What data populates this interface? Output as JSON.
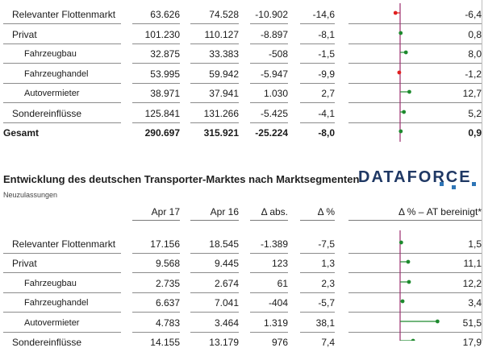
{
  "logo_text": "DATAFORCE",
  "colors": {
    "positive": "#1e8a2e",
    "negative": "#e02020",
    "axis": "#9b2d6e",
    "logo": "#1f3864",
    "logo_accent": "#2e75b6"
  },
  "table1": {
    "rows": [
      {
        "name": "Relevanter Flottenmarkt",
        "a": "63.626",
        "b": "74.528",
        "c": "-10.902",
        "d": "-14,6",
        "e": "-6,4",
        "e_val": -6.4
      },
      {
        "name": "Privat",
        "a": "101.230",
        "b": "110.127",
        "c": "-8.897",
        "d": "-8,1",
        "e": "0,8",
        "e_val": 0.8
      },
      {
        "name": "Fahrzeugbau",
        "a": "32.875",
        "b": "33.383",
        "c": "-508",
        "d": "-1,5",
        "e": "8,0",
        "e_val": 8.0
      },
      {
        "name": "Fahrzeughandel",
        "a": "53.995",
        "b": "59.942",
        "c": "-5.947",
        "d": "-9,9",
        "e": "-1,2",
        "e_val": -1.2
      },
      {
        "name": "Autovermieter",
        "a": "38.971",
        "b": "37.941",
        "c": "1.030",
        "d": "2,7",
        "e": "12,7",
        "e_val": 12.7
      },
      {
        "name": "Sondereinflüsse",
        "a": "125.841",
        "b": "131.266",
        "c": "-5.425",
        "d": "-4,1",
        "e": "5,2",
        "e_val": 5.2
      },
      {
        "name": "Gesamt",
        "a": "290.697",
        "b": "315.921",
        "c": "-25.224",
        "d": "-8,0",
        "e": "0,9",
        "e_val": 0.9
      }
    ]
  },
  "section2": {
    "title": "Entwicklung des deutschen Transporter-Marktes nach Marktsegmenten",
    "subtitle": "Neuzulassungen",
    "headers": {
      "a": "Apr 17",
      "b": "Apr 16",
      "c": "Δ abs.",
      "d": "Δ %",
      "e": "Δ % – AT bereinigt*"
    }
  },
  "table2": {
    "rows": [
      {
        "name": "Relevanter Flottenmarkt",
        "a": "17.156",
        "b": "18.545",
        "c": "-1.389",
        "d": "-7,5",
        "e": "1,5",
        "e_val": 1.5
      },
      {
        "name": "Privat",
        "a": "9.568",
        "b": "9.445",
        "c": "123",
        "d": "1,3",
        "e": "11,1",
        "e_val": 11.1
      },
      {
        "name": "Fahrzeugbau",
        "a": "2.735",
        "b": "2.674",
        "c": "61",
        "d": "2,3",
        "e": "12,2",
        "e_val": 12.2
      },
      {
        "name": "Fahrzeughandel",
        "a": "6.637",
        "b": "7.041",
        "c": "-404",
        "d": "-5,7",
        "e": "3,4",
        "e_val": 3.4
      },
      {
        "name": "Autovermieter",
        "a": "4.783",
        "b": "3.464",
        "c": "1.319",
        "d": "38,1",
        "e": "51,5",
        "e_val": 51.5
      },
      {
        "name": "Sondereinflüsse",
        "a": "14.155",
        "b": "13.179",
        "c": "976",
        "d": "7,4",
        "e": "17,9",
        "e_val": 17.9
      }
    ]
  }
}
